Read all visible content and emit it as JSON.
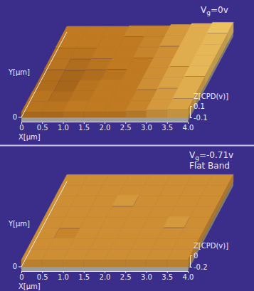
{
  "chart_data": [
    {
      "type": "surface",
      "annotations": [
        "Vg=0v"
      ],
      "x_label": "X[µm]",
      "y_label": "Y[µm]",
      "z_label": "Z[CPD(v)]",
      "xlim": [
        0,
        4
      ],
      "ylim": [
        0,
        4
      ],
      "zlim": [
        -0.1,
        0.1
      ],
      "xticks": [
        0,
        0.5,
        {
          "value": 1,
          "label": "1.0"
        },
        1.5,
        {
          "value": 2,
          "label": "2.0"
        },
        2.5,
        {
          "value": 3,
          "label": "3.0"
        },
        3.5,
        {
          "value": 4,
          "label": "4.0"
        }
      ],
      "yticks": [
        0
      ],
      "zticks": [
        -0.1,
        0.1
      ],
      "z": [
        [
          -0.01,
          -0.01,
          0,
          0,
          0,
          0.01,
          0.03,
          0.04
        ],
        [
          -0.01,
          -0.02,
          -0.01,
          0,
          0,
          0.01,
          0.03,
          0.05
        ],
        [
          -0.02,
          -0.03,
          -0.01,
          0,
          0,
          0.02,
          0.04,
          0.05
        ],
        [
          -0.02,
          -0.03,
          -0.02,
          -0.01,
          0,
          0.02,
          0.04,
          0.06
        ],
        [
          -0.01,
          -0.02,
          -0.01,
          0,
          0,
          0.02,
          0.05,
          0.06
        ],
        [
          -0.01,
          -0.01,
          0,
          0,
          0.01,
          0.02,
          0.05,
          0.06
        ],
        [
          0,
          0,
          0,
          0,
          0.01,
          0.03,
          0.05,
          0.06
        ],
        [
          0,
          0,
          0,
          0.01,
          0.01,
          0.03,
          0.05,
          0.07
        ]
      ]
    },
    {
      "type": "surface",
      "annotations": [
        "Vg=-0.71v",
        "Flat Band"
      ],
      "x_label": "X[µm]",
      "y_label": "Y[µm]",
      "z_label": "Z[CPD(v)]",
      "xlim": [
        0,
        4
      ],
      "ylim": [
        0,
        4
      ],
      "zlim": [
        -0.2,
        0
      ],
      "xticks": [
        0,
        0.5,
        {
          "value": 1,
          "label": "1.0"
        },
        1.5,
        {
          "value": 2,
          "label": "2.0"
        },
        2.5,
        {
          "value": 3,
          "label": "3.0"
        },
        3.5,
        {
          "value": 4,
          "label": "4.0"
        }
      ],
      "yticks": [
        0
      ],
      "zticks": [
        -0.2,
        0
      ],
      "z": [
        [
          -0.08,
          -0.08,
          -0.08,
          -0.08,
          -0.08,
          -0.08,
          -0.08,
          -0.08
        ],
        [
          -0.08,
          -0.08,
          -0.08,
          -0.08,
          -0.08,
          -0.08,
          -0.08,
          -0.08
        ],
        [
          -0.08,
          -0.09,
          -0.08,
          -0.08,
          -0.08,
          -0.08,
          -0.08,
          -0.08
        ],
        [
          -0.08,
          -0.08,
          -0.08,
          -0.08,
          -0.08,
          -0.08,
          -0.07,
          -0.08
        ],
        [
          -0.08,
          -0.08,
          -0.08,
          -0.08,
          -0.08,
          -0.08,
          -0.08,
          -0.08
        ],
        [
          -0.08,
          -0.08,
          -0.08,
          -0.07,
          -0.08,
          -0.08,
          -0.08,
          -0.08
        ],
        [
          -0.08,
          -0.08,
          -0.08,
          -0.08,
          -0.08,
          -0.08,
          -0.08,
          -0.08
        ],
        [
          -0.08,
          -0.08,
          -0.08,
          -0.08,
          -0.08,
          -0.08,
          -0.08,
          -0.08
        ]
      ]
    }
  ]
}
